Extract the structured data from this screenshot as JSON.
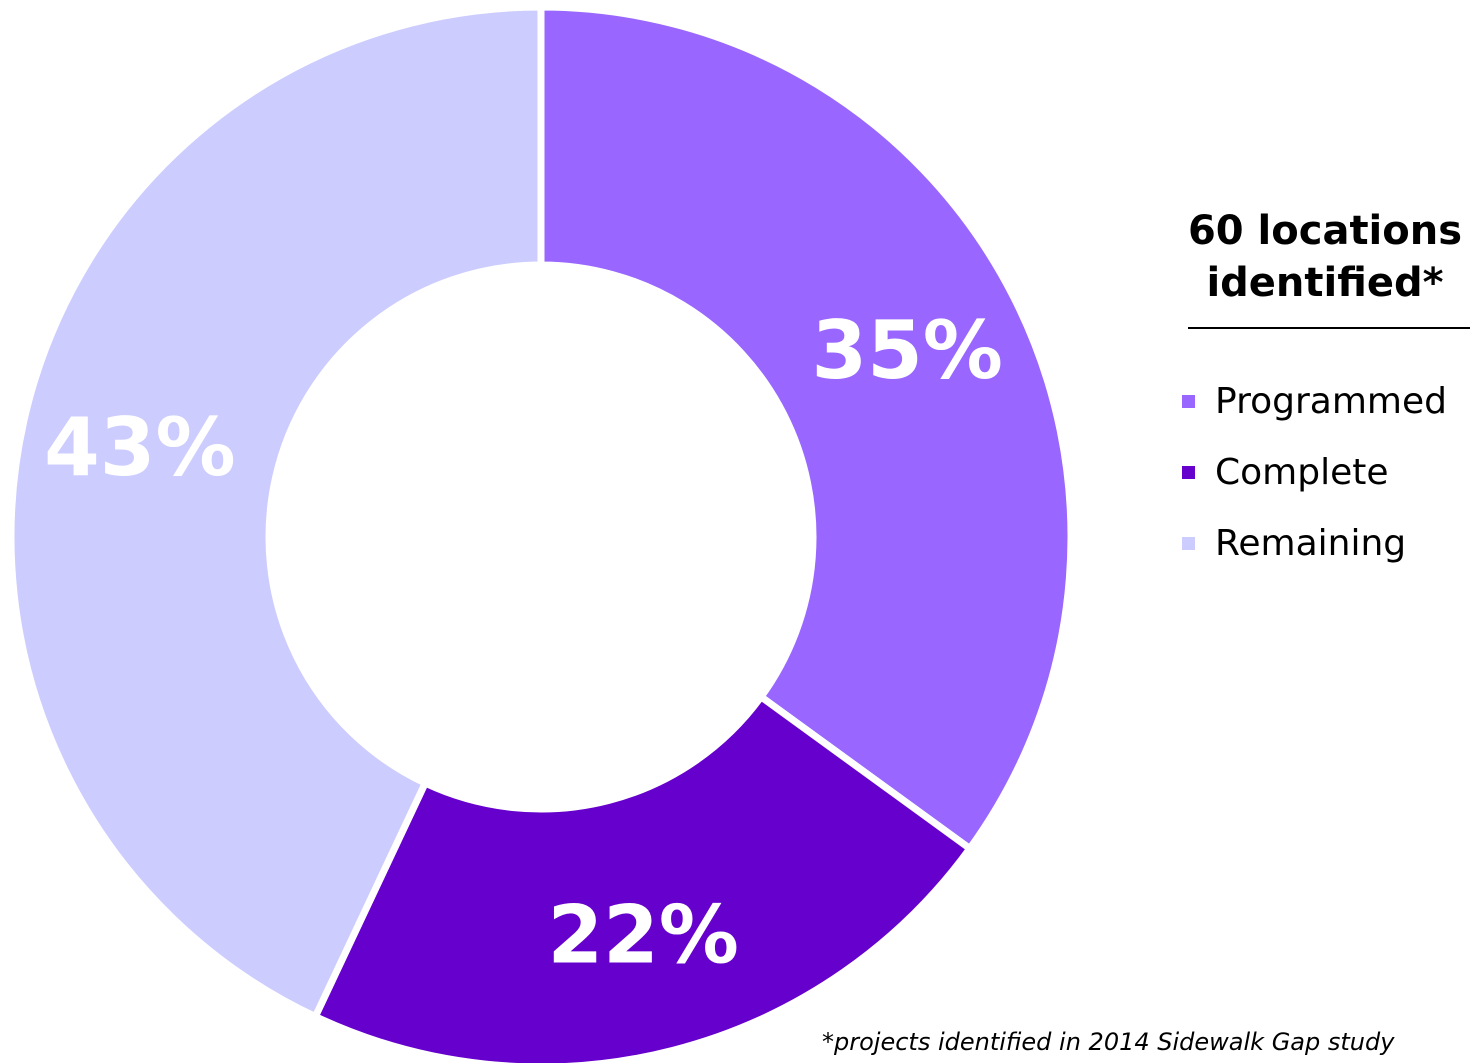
{
  "chart_data": {
    "type": "pie",
    "donut": true,
    "categories": [
      "Programmed",
      "Complete",
      "Remaining"
    ],
    "values": [
      35,
      22,
      43
    ],
    "labels": [
      "35%",
      "22%",
      "43%"
    ],
    "colors": [
      "#9966FF",
      "#6600CC",
      "#CCCCFF"
    ],
    "start": "12 o'clock",
    "direction": "clockwise",
    "legend_placement": "right"
  },
  "legend": {
    "title": "60 locations identified*",
    "items": [
      {
        "label": "Programmed",
        "color": "#9966FF"
      },
      {
        "label": "Complete",
        "color": "#6600CC"
      },
      {
        "label": "Remaining",
        "color": "#CCCCFF"
      }
    ]
  },
  "footnote": "*projects identified in 2014 Sidewalk Gap study"
}
